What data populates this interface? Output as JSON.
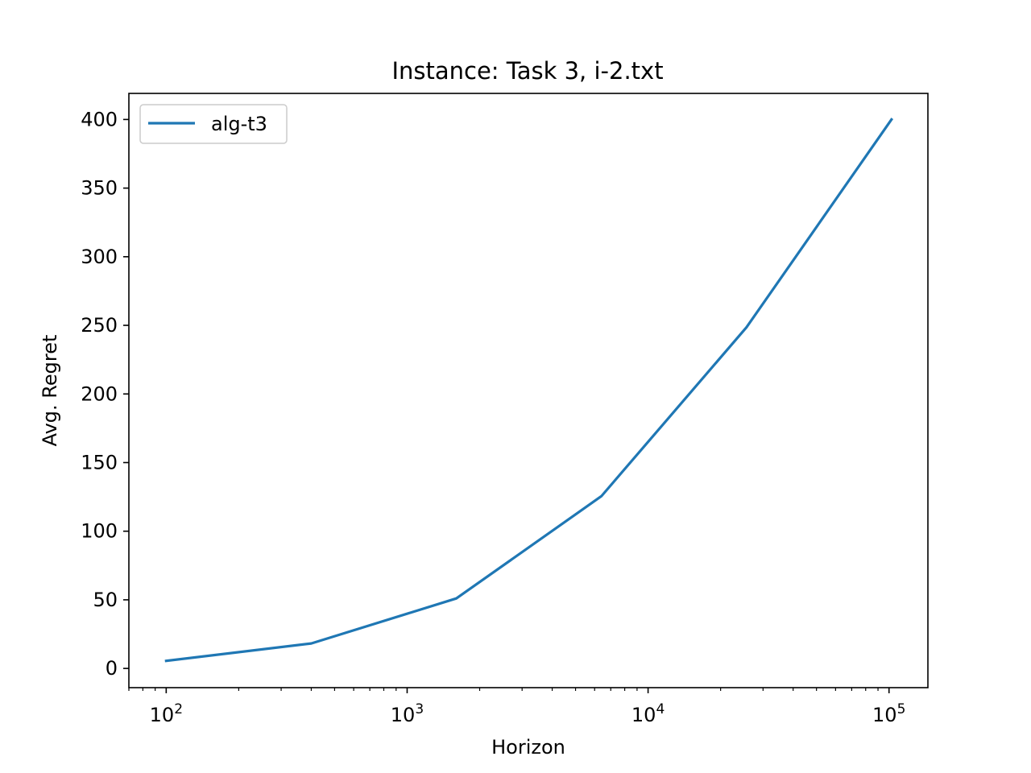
{
  "chart_data": {
    "type": "line",
    "title": "Instance: Task 3, i-2.txt",
    "xlabel": "Horizon",
    "ylabel": "Avg. Regret",
    "xscale": "log",
    "xlim": [
      70,
      145000
    ],
    "ylim": [
      -14,
      419
    ],
    "x_ticks": [
      {
        "value": 100,
        "base": "10",
        "exp": "2"
      },
      {
        "value": 1000,
        "base": "10",
        "exp": "3"
      },
      {
        "value": 10000,
        "base": "10",
        "exp": "4"
      },
      {
        "value": 100000,
        "base": "10",
        "exp": "5"
      }
    ],
    "y_ticks": [
      0,
      50,
      100,
      150,
      200,
      250,
      300,
      350,
      400
    ],
    "grid": false,
    "legend": "upper-left",
    "series": [
      {
        "name": "alg-t3",
        "color": "#1f77b4",
        "x": [
          100,
          400,
          1600,
          6400,
          25600,
          102400
        ],
        "y": [
          5.5,
          18.2,
          51.0,
          125.5,
          248.5,
          400.0
        ]
      }
    ]
  }
}
